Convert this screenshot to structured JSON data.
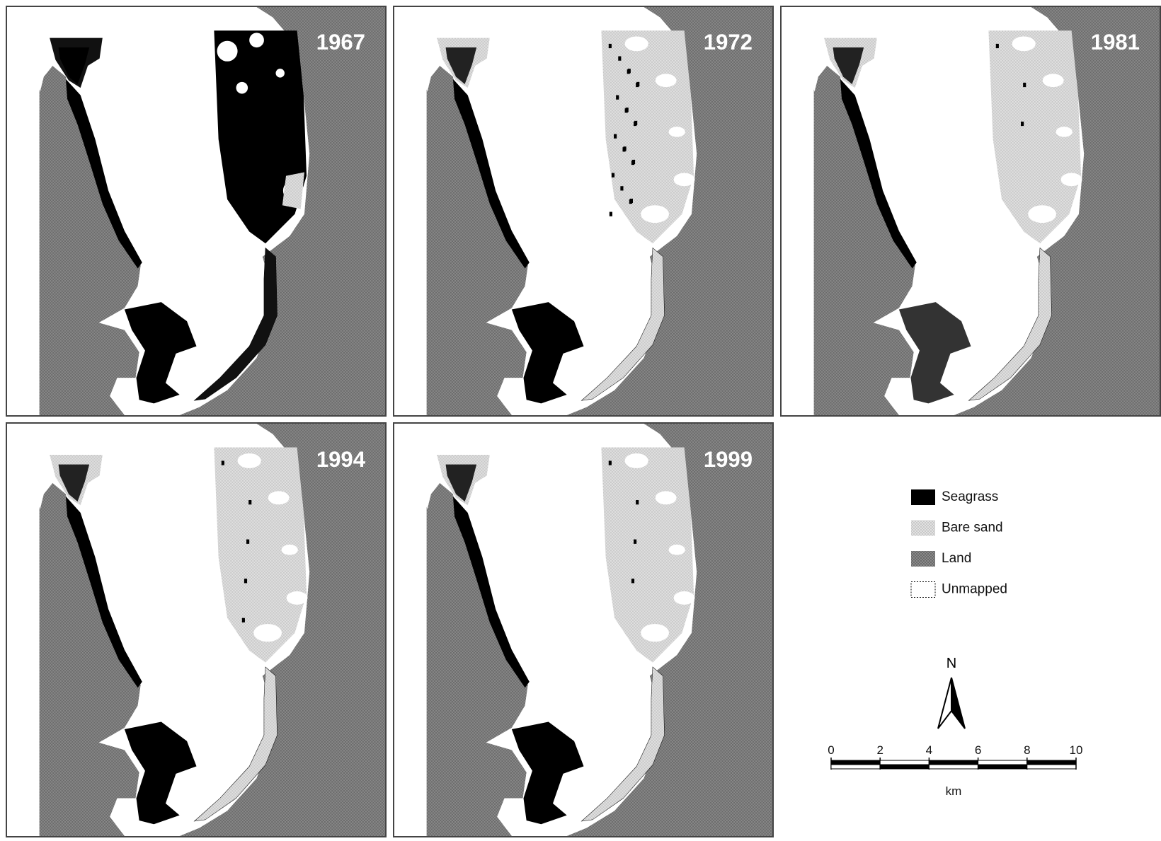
{
  "panels": [
    {
      "year": "1967"
    },
    {
      "year": "1972"
    },
    {
      "year": "1981"
    },
    {
      "year": "1994"
    },
    {
      "year": "1999"
    }
  ],
  "legend": [
    {
      "label": "Seagrass"
    },
    {
      "label": "Bare sand"
    },
    {
      "label": "Land"
    },
    {
      "label": "Unmapped"
    }
  ],
  "north_arrow": {
    "label": "N"
  },
  "scale_bar": {
    "ticks": [
      0,
      2,
      4,
      6,
      8,
      10
    ],
    "unit": "km"
  }
}
